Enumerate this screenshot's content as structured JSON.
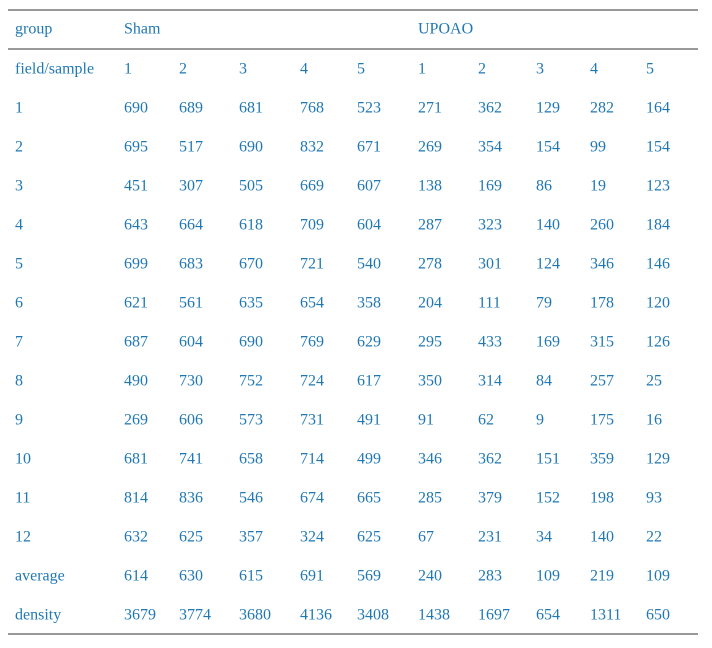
{
  "table": {
    "header": [
      "group",
      "Sham",
      "UPOAO"
    ],
    "subheader": {
      "label": "field/sample",
      "values": [
        1,
        2,
        3,
        4,
        5,
        1,
        2,
        3,
        4,
        5
      ]
    },
    "rows": [
      {
        "label": "1",
        "values": [
          690,
          689,
          681,
          768,
          523,
          271,
          362,
          129,
          282,
          164
        ]
      },
      {
        "label": "2",
        "values": [
          695,
          517,
          690,
          832,
          671,
          269,
          354,
          154,
          99,
          154
        ]
      },
      {
        "label": "3",
        "values": [
          451,
          307,
          505,
          669,
          607,
          138,
          169,
          86,
          19,
          123
        ]
      },
      {
        "label": "4",
        "values": [
          643,
          664,
          618,
          709,
          604,
          287,
          323,
          140,
          260,
          184
        ]
      },
      {
        "label": "5",
        "values": [
          699,
          683,
          670,
          721,
          540,
          278,
          301,
          124,
          346,
          146
        ]
      },
      {
        "label": "6",
        "values": [
          621,
          561,
          635,
          654,
          358,
          204,
          111,
          79,
          178,
          120
        ]
      },
      {
        "label": "7",
        "values": [
          687,
          604,
          690,
          769,
          629,
          295,
          433,
          169,
          315,
          126
        ]
      },
      {
        "label": "8",
        "values": [
          490,
          730,
          752,
          724,
          617,
          350,
          314,
          84,
          257,
          25
        ]
      },
      {
        "label": "9",
        "values": [
          269,
          606,
          573,
          731,
          491,
          91,
          62,
          9,
          175,
          16
        ]
      },
      {
        "label": "10",
        "values": [
          681,
          741,
          658,
          714,
          499,
          346,
          362,
          151,
          359,
          129
        ]
      },
      {
        "label": "11",
        "values": [
          814,
          836,
          546,
          674,
          665,
          285,
          379,
          152,
          198,
          93
        ]
      },
      {
        "label": "12",
        "values": [
          632,
          625,
          357,
          324,
          625,
          67,
          231,
          34,
          140,
          22
        ]
      },
      {
        "label": "average",
        "values": [
          614,
          630,
          615,
          691,
          569,
          240,
          283,
          109,
          219,
          109
        ]
      },
      {
        "label": "density",
        "values": [
          3679,
          3774,
          3680,
          4136,
          3408,
          1438,
          1697,
          654,
          1311,
          650
        ]
      }
    ]
  }
}
